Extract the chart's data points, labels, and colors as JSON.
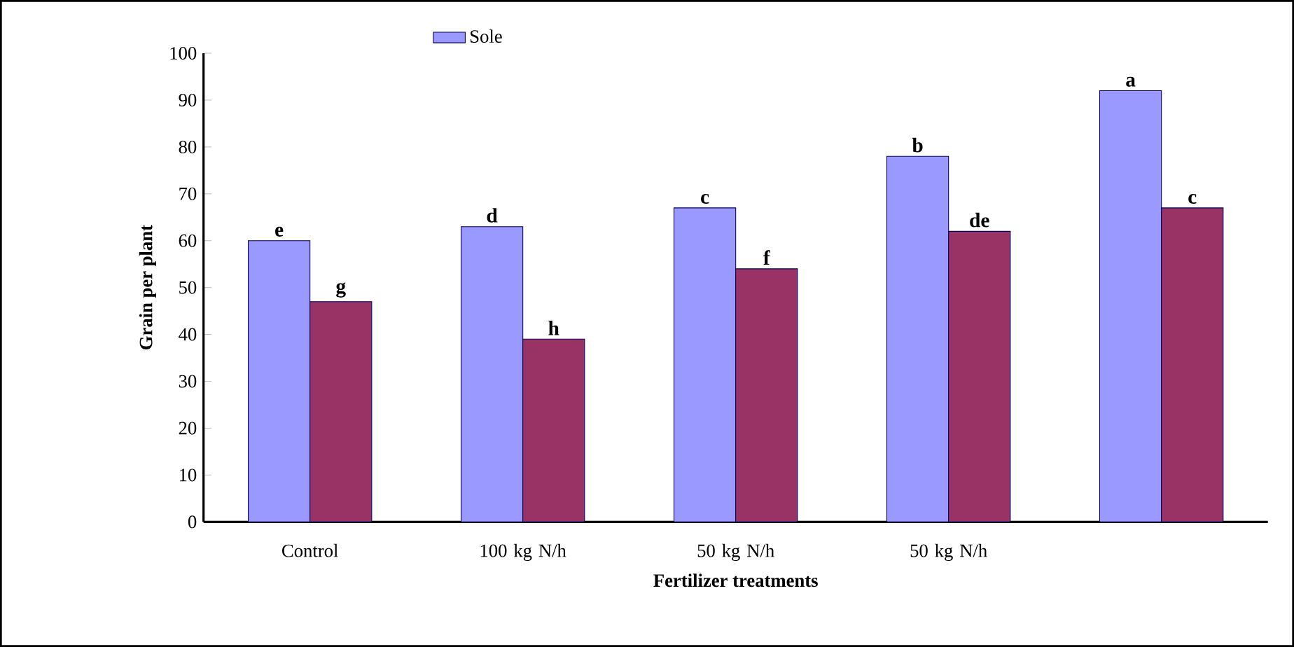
{
  "chart_data": {
    "type": "bar",
    "xlabel": "Fertilizer treatments",
    "ylabel": "Grain per plant",
    "categories": [
      "Control",
      "100 kg N/h",
      "50 kg N/h",
      "50 kg N/h",
      null
    ],
    "series": [
      {
        "name": "Sole",
        "color": "#9999ff",
        "values": [
          60,
          63,
          67,
          78,
          92
        ],
        "value_labels": [
          "e",
          "d",
          "c",
          "b",
          "a"
        ]
      },
      {
        "color": "#993366",
        "values": [
          47,
          39,
          54,
          62,
          67
        ],
        "value_labels": [
          "g",
          "h",
          "f",
          "de",
          "c"
        ]
      }
    ],
    "ylim": [
      0,
      100
    ],
    "yticks": [
      0,
      10,
      20,
      30,
      40,
      50,
      60,
      70,
      80,
      90,
      100
    ],
    "grid": false,
    "legend": "top"
  }
}
